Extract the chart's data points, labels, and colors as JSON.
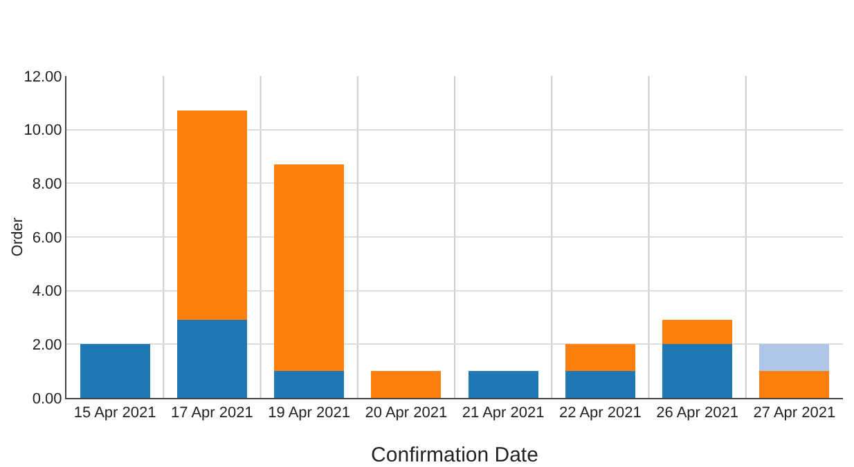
{
  "chart_data": {
    "type": "bar",
    "stacked": true,
    "xlabel": "Confirmation Date",
    "ylabel": "Order",
    "categories": [
      "15 Apr 2021",
      "17 Apr 2021",
      "19 Apr 2021",
      "20 Apr 2021",
      "21 Apr 2021",
      "22 Apr 2021",
      "26 Apr 2021",
      "27 Apr 2021"
    ],
    "series": [
      {
        "color": "#1f77b4",
        "values": [
          2,
          2.9,
          1,
          null,
          1,
          1,
          2,
          null
        ]
      },
      {
        "color": "#ff7f0e",
        "values": [
          null,
          7.8,
          7.7,
          1,
          null,
          1,
          0.9,
          1
        ]
      },
      {
        "color": "#aec7e8",
        "values": [
          null,
          null,
          null,
          null,
          null,
          null,
          null,
          1
        ]
      }
    ],
    "ylim": [
      0,
      12
    ],
    "yticks": [
      {
        "value": 0,
        "label": "0.00"
      },
      {
        "value": 2,
        "label": "2.00"
      },
      {
        "value": 4,
        "label": "4.00"
      },
      {
        "value": 6,
        "label": "6.00"
      },
      {
        "value": 8,
        "label": "8.00"
      },
      {
        "value": 10,
        "label": "10.00"
      },
      {
        "value": 12,
        "label": "12.00"
      }
    ],
    "grid": true
  }
}
